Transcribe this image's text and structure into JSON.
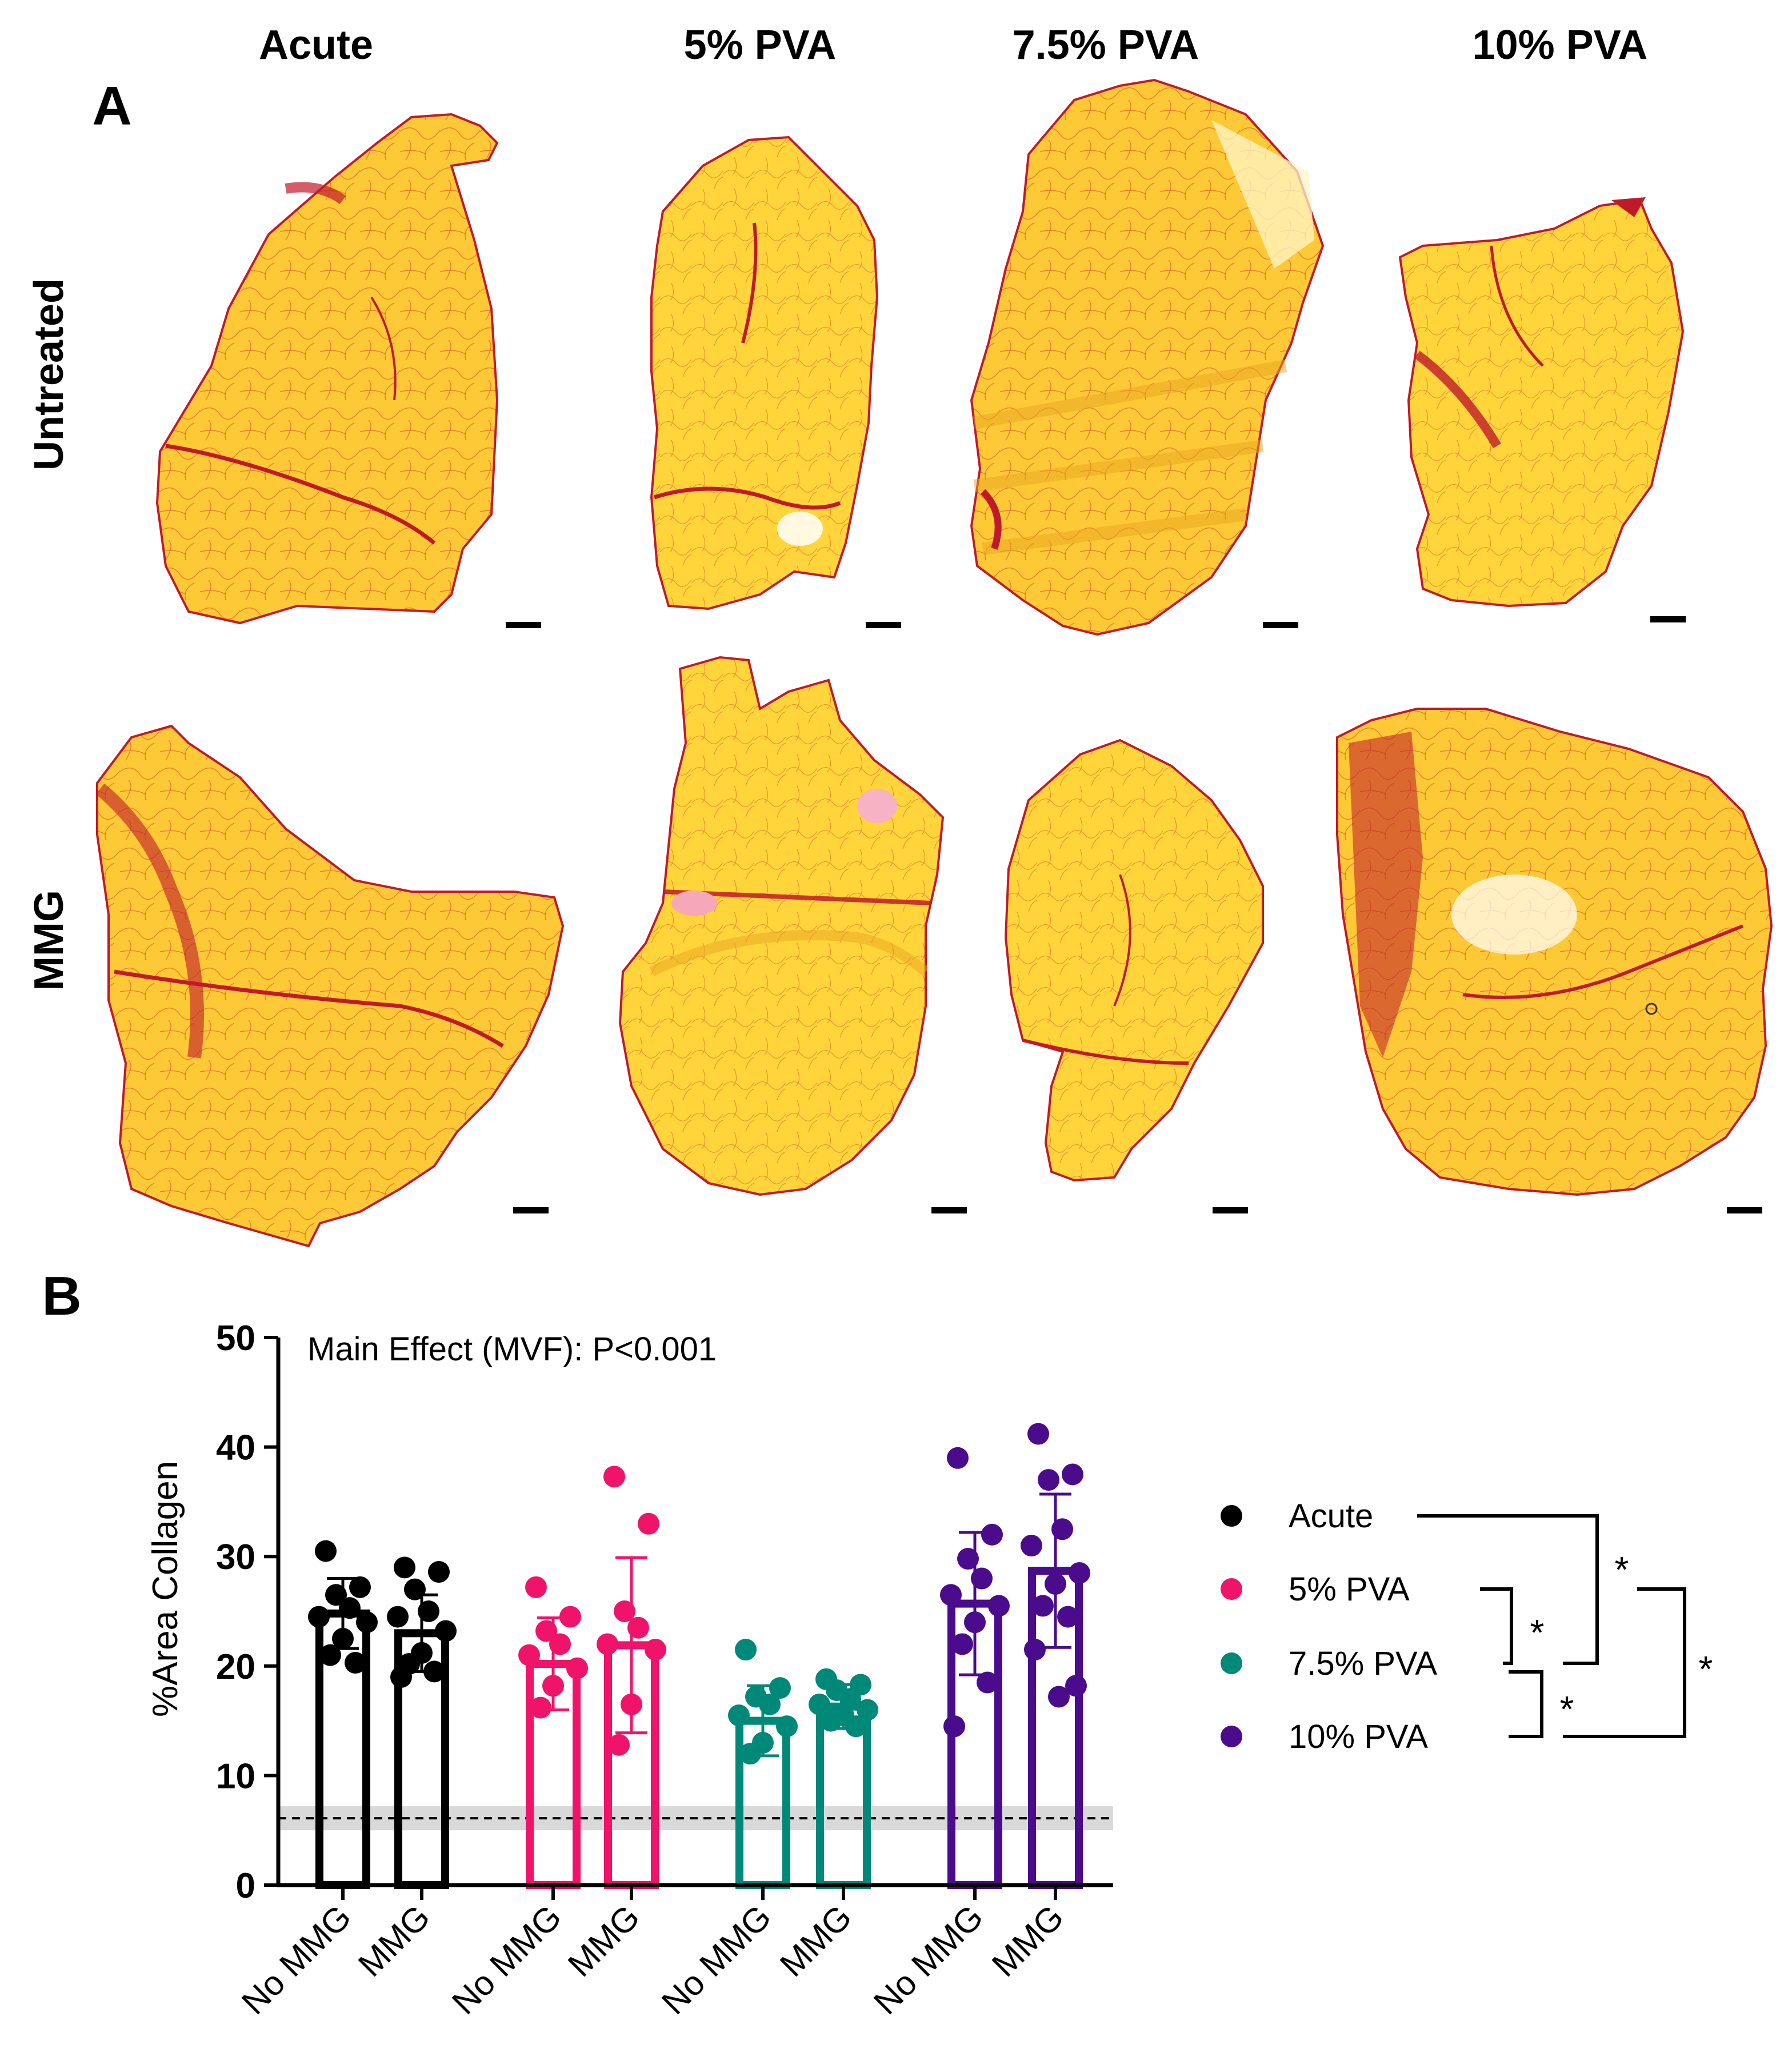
{
  "panel_a": {
    "label": "A",
    "columns": [
      "Acute",
      "5% PVA",
      "7.5% PVA",
      "10% PVA"
    ],
    "rows": [
      "Untreated",
      "MMG"
    ],
    "tissue_colors": {
      "muscle": "#fdc936",
      "collagen": "#c8102e",
      "highlight": "#fff27a"
    }
  },
  "panel_b": {
    "label": "B",
    "annotation": "Main Effect (MVF): P<0.001",
    "legend": {
      "items": [
        {
          "name": "Acute",
          "color": "#000000"
        },
        {
          "name": "5% PVA",
          "color": "#f0136a"
        },
        {
          "name": "7.5% PVA",
          "color": "#008878"
        },
        {
          "name": "10% PVA",
          "color": "#4a0b8c"
        }
      ]
    },
    "significance_mark": "*"
  },
  "chart_data": {
    "type": "bar",
    "title": "",
    "xlabel": "",
    "ylabel": "%Area  Collagen",
    "ylim": [
      0,
      50
    ],
    "yticks": [
      0,
      10,
      20,
      30,
      40,
      50
    ],
    "categories": [
      "No MMG",
      "MMG",
      "No MMG",
      "MMG",
      "No MMG",
      "MMG",
      "No MMG",
      "MMG"
    ],
    "groups": [
      "Acute",
      "Acute",
      "5% PVA",
      "5% PVA",
      "7.5% PVA",
      "7.5% PVA",
      "10% PVA",
      "10% PVA"
    ],
    "colors": [
      "#000000",
      "#000000",
      "#f0136a",
      "#f0136a",
      "#008878",
      "#008878",
      "#4a0b8c",
      "#4a0b8c"
    ],
    "values": [
      24.8,
      23.0,
      20.2,
      21.9,
      15.0,
      16.3,
      25.7,
      28.7
    ],
    "sd": [
      3.2,
      3.5,
      4.2,
      8.0,
      3.2,
      2.0,
      6.5,
      7.0
    ],
    "points": [
      [
        30.5,
        27.2,
        26.5,
        25.3,
        24.5,
        24.0,
        22.5,
        21.0,
        20.3
      ],
      [
        29.0,
        28.6,
        27.0,
        25.0,
        24.5,
        23.2,
        21.2,
        20.2,
        19.5,
        19.0
      ],
      [
        27.2,
        24.5,
        23.2,
        22.0,
        21.0,
        19.8,
        18.2,
        16.2
      ],
      [
        37.3,
        33.0,
        25.0,
        23.5,
        22.0,
        21.5,
        16.5,
        12.8
      ],
      [
        21.5,
        18.0,
        17.2,
        16.5,
        15.5,
        14.5,
        13.0,
        12.0
      ],
      [
        18.8,
        18.3,
        17.8,
        17.0,
        16.5,
        16.0,
        15.5,
        15.0,
        14.5
      ],
      [
        39.0,
        32.0,
        29.8,
        28.0,
        26.5,
        25.5,
        24.0,
        22.0,
        18.5,
        14.5
      ],
      [
        41.2,
        37.5,
        37.0,
        32.5,
        31.0,
        28.5,
        27.5,
        25.5,
        24.5,
        21.5,
        18.2,
        17.2
      ]
    ],
    "reference_line": {
      "value": 6.1,
      "band": [
        5.0,
        7.2
      ],
      "style": "dashed"
    },
    "comparisons": [
      {
        "a": "Acute",
        "b": "7.5% PVA",
        "label": "*"
      },
      {
        "a": "5% PVA",
        "b": "7.5% PVA",
        "label": "*"
      },
      {
        "a": "7.5% PVA",
        "b": "10% PVA",
        "label": "*"
      },
      {
        "a": "5% PVA",
        "b": "10% PVA",
        "label": "*"
      }
    ]
  }
}
